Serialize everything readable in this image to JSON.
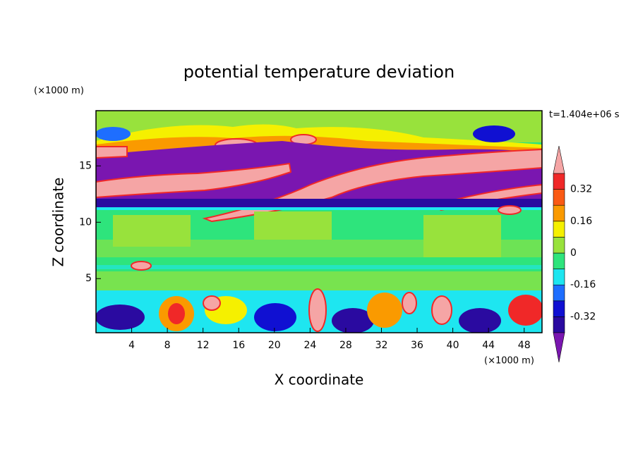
{
  "chart_data": {
    "type": "contour",
    "title": "potential temperature deviation",
    "x_label": "X coordinate",
    "y_label": "Z coordinate",
    "x_unit": "(×1000 m)",
    "y_unit": "(×1000 m)",
    "time_label": "t=1.404e+06 s",
    "xlim": [
      0,
      50
    ],
    "ylim": [
      0.2,
      19.9
    ],
    "xticks": [
      4,
      8,
      12,
      16,
      20,
      24,
      28,
      32,
      36,
      40,
      44,
      48
    ],
    "yticks": [
      5,
      10,
      15
    ],
    "levels": [
      -0.4,
      -0.32,
      -0.24,
      -0.16,
      -0.08,
      0,
      0.08,
      0.16,
      0.24,
      0.32,
      0.4
    ],
    "colorbar_ticks": [
      -0.32,
      -0.16,
      0,
      0.16,
      0.32
    ],
    "colors": [
      "#7a16b0",
      "#2a0aa0",
      "#1010d2",
      "#1e6eff",
      "#1ee6f0",
      "#2ee47c",
      "#98e23c",
      "#f5f000",
      "#fa9a00",
      "#fa5a14",
      "#f02828",
      "#f5a5a5"
    ]
  }
}
